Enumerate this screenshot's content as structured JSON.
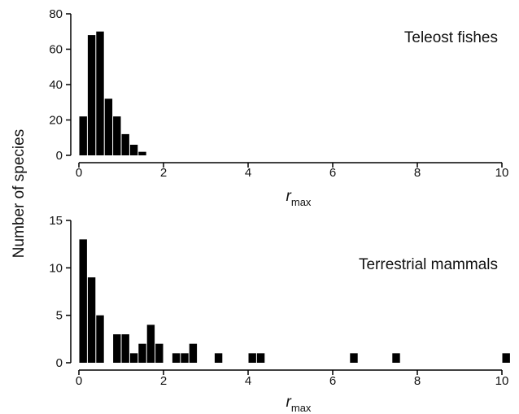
{
  "chart_data": {
    "ylabel": "Number of species",
    "panels": [
      {
        "type": "bar",
        "title": "Teleost fishes",
        "xlabel": {
          "main": "r",
          "sub": "max"
        },
        "xlim": [
          0,
          10
        ],
        "ylim": [
          0,
          80
        ],
        "xticks": [
          0,
          2,
          4,
          6,
          8,
          10
        ],
        "yticks": [
          0,
          20,
          40,
          60,
          80
        ],
        "bin_width": 0.2,
        "bins": [
          {
            "x": 0.0,
            "y": 22
          },
          {
            "x": 0.2,
            "y": 68
          },
          {
            "x": 0.4,
            "y": 70
          },
          {
            "x": 0.6,
            "y": 32
          },
          {
            "x": 0.8,
            "y": 22
          },
          {
            "x": 1.0,
            "y": 12
          },
          {
            "x": 1.2,
            "y": 6
          },
          {
            "x": 1.4,
            "y": 2
          }
        ]
      },
      {
        "type": "bar",
        "title": "Terrestrial mammals",
        "xlabel": {
          "main": "r",
          "sub": "max"
        },
        "xlim": [
          0,
          10
        ],
        "ylim": [
          0,
          15
        ],
        "xticks": [
          0,
          2,
          4,
          6,
          8,
          10
        ],
        "yticks": [
          0,
          5,
          10,
          15
        ],
        "bin_width": 0.2,
        "bins": [
          {
            "x": 0.0,
            "y": 13
          },
          {
            "x": 0.2,
            "y": 9
          },
          {
            "x": 0.4,
            "y": 5
          },
          {
            "x": 0.8,
            "y": 3
          },
          {
            "x": 1.0,
            "y": 3
          },
          {
            "x": 1.2,
            "y": 1
          },
          {
            "x": 1.4,
            "y": 2
          },
          {
            "x": 1.6,
            "y": 4
          },
          {
            "x": 1.8,
            "y": 2
          },
          {
            "x": 2.2,
            "y": 1
          },
          {
            "x": 2.4,
            "y": 1
          },
          {
            "x": 2.6,
            "y": 2
          },
          {
            "x": 3.2,
            "y": 1
          },
          {
            "x": 4.0,
            "y": 1
          },
          {
            "x": 4.2,
            "y": 1
          },
          {
            "x": 6.4,
            "y": 1
          },
          {
            "x": 7.4,
            "y": 1
          },
          {
            "x": 10.0,
            "y": 1
          }
        ]
      }
    ]
  }
}
